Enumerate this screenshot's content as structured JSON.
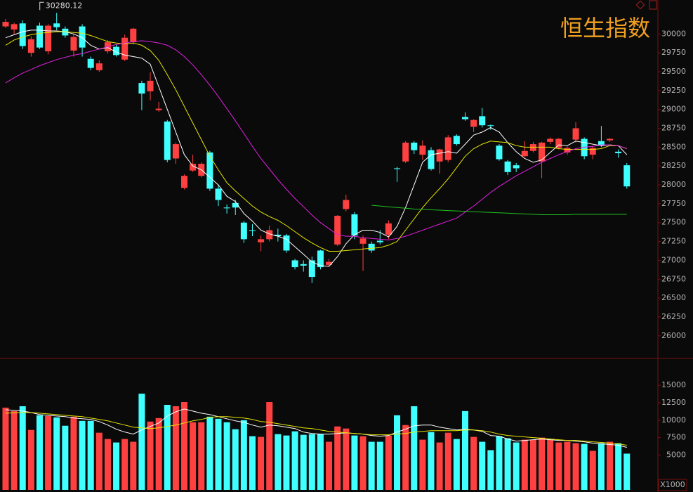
{
  "chart_data": [
    {
      "type": "candlestick",
      "title": "恒生指数",
      "annotation": "30280.12",
      "annotation_index": 6,
      "ylim": [
        25700,
        30450
      ],
      "yticks": [
        26000,
        26250,
        26500,
        26750,
        27000,
        27250,
        27500,
        27750,
        28000,
        28250,
        28500,
        28750,
        29000,
        29250,
        29500,
        29750,
        30000
      ],
      "up_color": "#ff4040",
      "down_color": "#40ffff",
      "open": [
        30100,
        30060,
        30140,
        29750,
        30110,
        29770,
        30140,
        30070,
        29780,
        30100,
        29670,
        29520,
        29770,
        29830,
        29660,
        29890,
        29350,
        29240,
        28990,
        28840,
        28350,
        27960,
        28190,
        28120,
        28430,
        27950,
        27700,
        27760,
        27500,
        27400,
        27240,
        27280,
        27340,
        27330,
        27000,
        26950,
        27000,
        27130,
        26940,
        27210,
        27680,
        27610,
        27220,
        27220,
        27260,
        27340,
        28220,
        28310,
        28560,
        28400,
        28460,
        28310,
        28330,
        28650,
        28900,
        28770,
        28910,
        28790,
        28520,
        28310,
        28260,
        28380,
        28450,
        28310,
        28570,
        28490,
        28430,
        28600,
        28610,
        28400,
        28580,
        28590,
        28440,
        28260
      ],
      "high": [
        30200,
        30150,
        30180,
        29970,
        30150,
        30130,
        30280,
        30100,
        30000,
        30130,
        29700,
        29650,
        29920,
        29860,
        29990,
        30080,
        29380,
        29490,
        29100,
        28860,
        28560,
        28140,
        28400,
        28300,
        28450,
        28000,
        27740,
        27800,
        27520,
        27480,
        27330,
        27460,
        27420,
        27350,
        27020,
        27000,
        27050,
        27140,
        27020,
        27600,
        27870,
        27640,
        27330,
        27250,
        27400,
        27530,
        28240,
        28580,
        28580,
        28590,
        28500,
        28480,
        28660,
        28670,
        28960,
        28870,
        29020,
        28800,
        28540,
        28330,
        28290,
        28580,
        28570,
        28570,
        28630,
        28620,
        28510,
        28830,
        28630,
        28520,
        28780,
        28620,
        28470,
        28290
      ],
      "low": [
        30080,
        30000,
        29800,
        29700,
        29800,
        29730,
        30050,
        29950,
        29700,
        29700,
        29520,
        29500,
        29740,
        29700,
        29640,
        29860,
        28990,
        29120,
        28970,
        28300,
        28280,
        27940,
        28170,
        28100,
        27920,
        27720,
        27620,
        27600,
        27230,
        27320,
        27120,
        27250,
        27250,
        27100,
        26880,
        26850,
        26700,
        26880,
        26920,
        27190,
        27650,
        27280,
        26860,
        27100,
        27210,
        27280,
        28040,
        28290,
        28410,
        28330,
        28190,
        28150,
        28300,
        28520,
        28850,
        28700,
        28760,
        28730,
        28320,
        28130,
        28170,
        28370,
        28430,
        28090,
        28540,
        28470,
        28400,
        28560,
        28340,
        28340,
        28500,
        28570,
        28360,
        27950
      ],
      "close": [
        30160,
        30130,
        29840,
        29930,
        29820,
        30110,
        30090,
        29980,
        29960,
        29820,
        29550,
        29610,
        29890,
        29720,
        29950,
        30070,
        29210,
        29380,
        29010,
        28330,
        28540,
        28120,
        28280,
        28280,
        27950,
        27800,
        27690,
        27700,
        27280,
        27390,
        27280,
        27400,
        27320,
        27130,
        26910,
        26930,
        26780,
        26910,
        26980,
        27590,
        27800,
        27330,
        27290,
        27130,
        27240,
        27490,
        28210,
        28560,
        28460,
        28520,
        28210,
        28470,
        28630,
        28540,
        28870,
        28860,
        28790,
        28780,
        28340,
        28170,
        28220,
        28450,
        28540,
        28560,
        28610,
        28610,
        28490,
        28750,
        28380,
        28490,
        28520,
        28610,
        28420,
        27980
      ],
      "lines": [
        {
          "color": "#ffffff",
          "values": [
            29950,
            29990,
            30030,
            30050,
            30050,
            30040,
            30040,
            30030,
            30000,
            29950,
            29850,
            29800,
            29820,
            29760,
            29720,
            29700,
            29680,
            29600,
            29300,
            29000,
            28700,
            28400,
            28250,
            28200,
            28100,
            28000,
            27850,
            27780,
            27620,
            27520,
            27400,
            27350,
            27320,
            27280,
            27180,
            27080,
            26980,
            26930,
            26920,
            27050,
            27220,
            27340,
            27400,
            27400,
            27370,
            27310,
            27450,
            27700,
            28000,
            28300,
            28400,
            28420,
            28440,
            28420,
            28540,
            28660,
            28700,
            28760,
            28700,
            28560,
            28440,
            28350,
            28300,
            28330,
            28430,
            28530,
            28520,
            28580,
            28560,
            28540,
            28520,
            28530,
            28520,
            28400
          ]
        },
        {
          "color": "#e6e600",
          "values": [
            29850,
            29920,
            29960,
            29990,
            30010,
            30020,
            30030,
            30030,
            30020,
            30010,
            29980,
            29940,
            29900,
            29880,
            29870,
            29880,
            29850,
            29780,
            29650,
            29460,
            29260,
            29040,
            28820,
            28600,
            28380,
            28200,
            28030,
            27920,
            27820,
            27720,
            27640,
            27580,
            27530,
            27460,
            27380,
            27300,
            27230,
            27170,
            27120,
            27120,
            27130,
            27140,
            27150,
            27160,
            27170,
            27200,
            27250,
            27400,
            27550,
            27700,
            27830,
            27950,
            28080,
            28230,
            28380,
            28480,
            28540,
            28580,
            28570,
            28560,
            28520,
            28500,
            28500,
            28500,
            28500,
            28480,
            28470,
            28470,
            28470,
            28470,
            28480,
            28520,
            28520,
            28480
          ]
        },
        {
          "color": "#e020e0",
          "values": [
            29350,
            29420,
            29480,
            29530,
            29580,
            29620,
            29660,
            29690,
            29720,
            29740,
            29770,
            29800,
            29830,
            29860,
            29880,
            29900,
            29910,
            29900,
            29880,
            29850,
            29790,
            29700,
            29590,
            29460,
            29320,
            29170,
            29010,
            28850,
            28680,
            28510,
            28350,
            28210,
            28070,
            27940,
            27820,
            27710,
            27600,
            27500,
            27420,
            27340,
            27320,
            27320,
            27300,
            27290,
            27280,
            27270,
            27290,
            27320,
            27360,
            27400,
            27440,
            27480,
            27520,
            27560,
            27640,
            27720,
            27810,
            27900,
            27980,
            28050,
            28120,
            28180,
            28240,
            28300,
            28350,
            28400,
            28440,
            28480,
            28500,
            28510,
            28530,
            28530,
            28520,
            28480
          ]
        },
        {
          "color": "#20c020",
          "values": [
            null,
            null,
            null,
            null,
            null,
            null,
            null,
            null,
            null,
            null,
            null,
            null,
            null,
            null,
            null,
            null,
            null,
            null,
            null,
            null,
            null,
            null,
            null,
            null,
            null,
            null,
            null,
            null,
            null,
            null,
            null,
            null,
            null,
            null,
            null,
            null,
            null,
            null,
            null,
            null,
            null,
            null,
            null,
            27730,
            27720,
            27710,
            27700,
            27690,
            27680,
            27675,
            27670,
            27665,
            27660,
            27655,
            27650,
            27645,
            27640,
            27635,
            27630,
            27625,
            27620,
            27615,
            27610,
            27605,
            27605,
            27605,
            27605,
            27610,
            27610,
            27610,
            27610,
            27610,
            27610,
            27610
          ]
        }
      ]
    },
    {
      "type": "bar",
      "unit_label": "X1000",
      "ylim": [
        0,
        18650
      ],
      "yticks": [
        5000,
        7500,
        10000,
        12500,
        15000
      ],
      "values": [
        11800,
        11300,
        12000,
        8600,
        10700,
        10600,
        10400,
        9200,
        10500,
        9900,
        9900,
        8200,
        7300,
        6800,
        7300,
        6900,
        13800,
        9800,
        10300,
        12200,
        12000,
        12600,
        9700,
        9700,
        10500,
        10200,
        9700,
        8700,
        10000,
        7700,
        7600,
        12600,
        8000,
        7800,
        8400,
        7900,
        8000,
        8000,
        6900,
        9100,
        8800,
        7800,
        7700,
        6900,
        6900,
        7800,
        10700,
        9300,
        12000,
        7200,
        8300,
        6800,
        8200,
        7300,
        11300,
        7600,
        6900,
        5700,
        7700,
        7400,
        6800,
        7200,
        7200,
        7500,
        7200,
        6800,
        6900,
        6700,
        6600,
        5600,
        6700,
        6900,
        6700,
        5200
      ],
      "lines": [
        {
          "color": "#ffffff",
          "values": [
            11500,
            11400,
            11300,
            11100,
            10800,
            10700,
            10600,
            10500,
            10300,
            10200,
            10100,
            9800,
            9300,
            8700,
            8300,
            8000,
            8600,
            9100,
            9600,
            10600,
            11200,
            11600,
            11300,
            11000,
            10800,
            10500,
            10200,
            9900,
            9700,
            9300,
            9000,
            9300,
            9200,
            9000,
            8800,
            8300,
            8100,
            8000,
            8000,
            8100,
            8200,
            8100,
            8000,
            7800,
            7700,
            7800,
            8300,
            8700,
            9200,
            9300,
            9300,
            9000,
            8800,
            8600,
            8700,
            8600,
            8400,
            7800,
            7700,
            7300,
            7000,
            7100,
            7200,
            7300,
            7200,
            7100,
            7100,
            7000,
            6900,
            6700,
            6600,
            6500,
            6400,
            6100
          ]
        },
        {
          "color": "#e6e600",
          "values": [
            11000,
            11050,
            11100,
            11100,
            11000,
            10900,
            10800,
            10700,
            10600,
            10500,
            10300,
            10100,
            9900,
            9600,
            9300,
            9000,
            8900,
            8800,
            8900,
            9100,
            9300,
            9600,
            9900,
            10100,
            10400,
            10500,
            10500,
            10400,
            10300,
            10100,
            9800,
            9700,
            9500,
            9300,
            9100,
            8900,
            8800,
            8600,
            8400,
            8300,
            8200,
            8100,
            8000,
            7900,
            7900,
            7900,
            8000,
            8100,
            8300,
            8400,
            8500,
            8500,
            8500,
            8500,
            8600,
            8600,
            8500,
            8300,
            8000,
            7800,
            7700,
            7600,
            7500,
            7400,
            7300,
            7200,
            7100,
            7100,
            7000,
            6900,
            6800,
            6700,
            6600,
            6400
          ]
        }
      ]
    }
  ]
}
